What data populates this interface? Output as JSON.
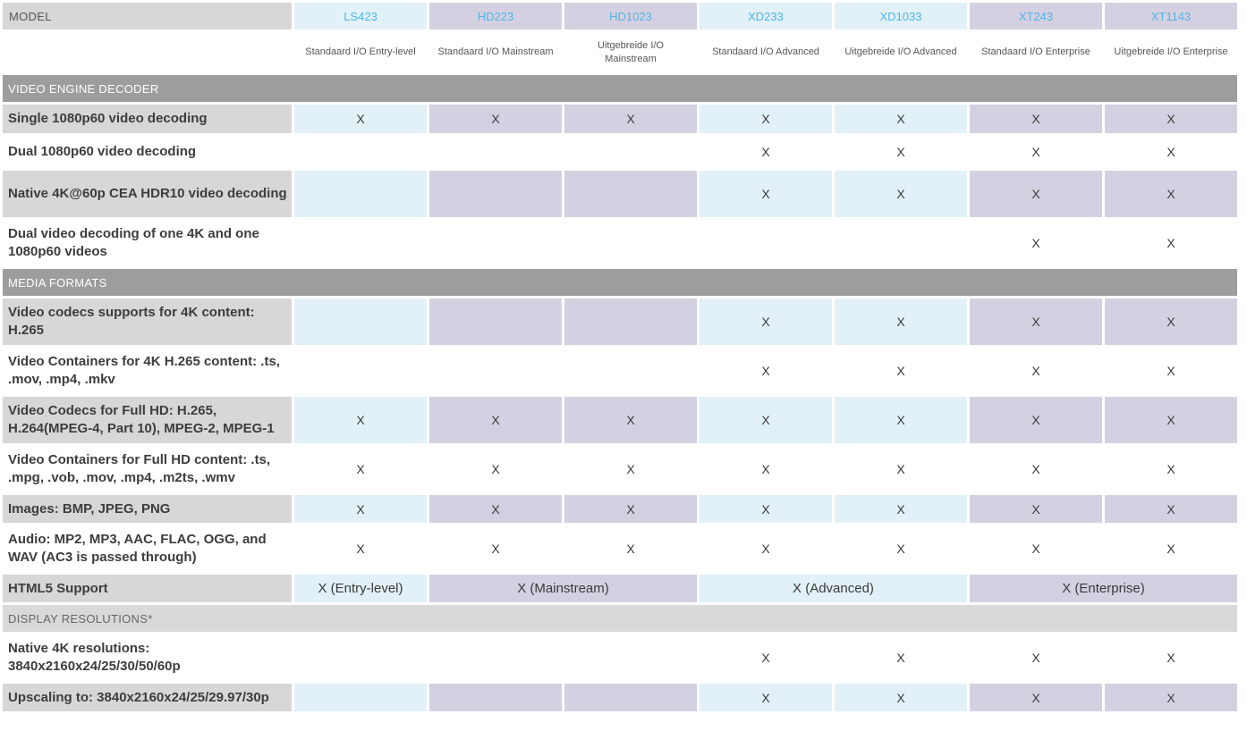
{
  "header": {
    "model_label": "MODEL",
    "models": [
      "LS423",
      "HD223",
      "HD1023",
      "XD233",
      "XD1033",
      "XT243",
      "XT1143"
    ],
    "subtitles": [
      "Standaard I/O Entry-level",
      "Standaard I/O Mainstream",
      "Uitgebreide I/O Mainstream",
      "Standaard I/O Advanced",
      "Uitgebreide I/O Advanced",
      "Standaard I/O Enterprise",
      "Uitgebreide I/O Enterprise"
    ]
  },
  "mark": "X",
  "sections": {
    "video_engine": "VIDEO ENGINE DECODER",
    "media_formats": "MEDIA FORMATS",
    "display_resolutions": "DISPLAY RESOLUTIONS*"
  },
  "rows": {
    "single_1080": "Single 1080p60 video decoding",
    "dual_1080": "Dual 1080p60 video decoding",
    "native_4k": "Native 4K@60p CEA HDR10 video decoding",
    "dual_4k_1080": "Dual video decoding of one 4K and one 1080p60 videos",
    "codecs_4k": "Video codecs supports for 4K content: H.265",
    "containers_4k": "Video Containers for 4K H.265 content: .ts, .mov, .mp4, .mkv",
    "codecs_fullhd": "Video Codecs for Full HD: H.265, H.264(MPEG-4, Part 10), MPEG-2, MPEG-1",
    "containers_fullhd": "Video Containers for Full HD content: .ts, .mpg, .vob, .mov, .mp4, .m2ts, .wmv",
    "images": "Images: BMP, JPEG, PNG",
    "audio": "Audio: MP2, MP3, AAC, FLAC, OGG, and WAV (AC3 is passed through)",
    "html5": "HTML5 Support",
    "native_4k_res": "Native 4K resolutions: 3840x2160x24/25/30/50/60p",
    "upscaling": "Upscaling to: 3840x2160x24/25/29.97/30p"
  },
  "html5": {
    "entry": "X (Entry-level)",
    "mainstream": "X (Mainstream)",
    "advanced": "X (Advanced)",
    "enterprise": "X (Enterprise)"
  }
}
